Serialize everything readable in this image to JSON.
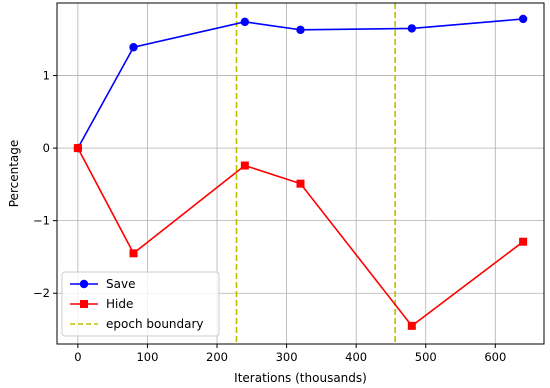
{
  "chart_data": {
    "type": "line",
    "title": "",
    "xlabel": "Iterations (thousands)",
    "ylabel": "Percentage",
    "xlim": [
      -30,
      670
    ],
    "ylim": [
      -2.7,
      2.0
    ],
    "xticks": [
      0,
      100,
      200,
      300,
      400,
      500,
      600
    ],
    "yticks": [
      -2,
      -1,
      0,
      1
    ],
    "ytick_labels": [
      "−2",
      "−1",
      "0",
      "1"
    ],
    "grid": true,
    "legend_position": "lower-left",
    "series": [
      {
        "name": "Save",
        "color": "#0000ff",
        "marker": "circle",
        "x": [
          0,
          80,
          240,
          320,
          480,
          640
        ],
        "y": [
          0.0,
          1.39,
          1.74,
          1.63,
          1.65,
          1.78
        ]
      },
      {
        "name": "Hide",
        "color": "#ff0000",
        "marker": "square",
        "x": [
          0,
          80,
          240,
          320,
          480,
          640
        ],
        "y": [
          0.0,
          -1.45,
          -0.24,
          -0.49,
          -2.45,
          -1.29
        ]
      }
    ],
    "vlines": {
      "name": "epoch boundary",
      "color": "#bfbf00",
      "style": "dashed",
      "x": [
        228,
        456
      ]
    }
  }
}
